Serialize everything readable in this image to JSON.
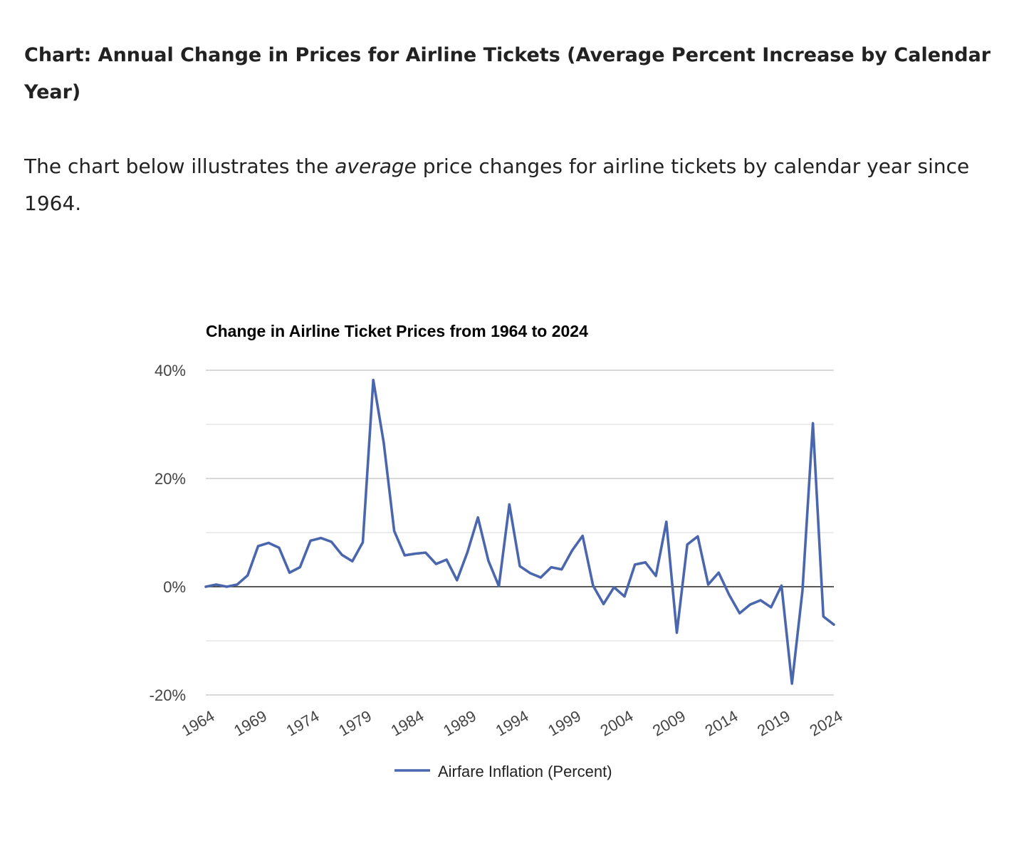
{
  "article": {
    "heading": "Chart: Annual Change in Prices for Airline Tickets (Average Percent Increase by Calendar Year)",
    "intro_before": "The chart below illustrates the ",
    "intro_emphasis": "average",
    "intro_after": " price changes for airline tickets by calendar year since 1964."
  },
  "colors": {
    "series_line": "#4a66ad",
    "zero_line": "#222222",
    "gridline": "#cccccc",
    "minor_gridline": "#e6e6e6"
  },
  "chart_data": {
    "type": "line",
    "title": "Change in Airline Ticket Prices from 1964 to 2024",
    "xlabel": "",
    "ylabel": "",
    "xlim": [
      1964,
      2024
    ],
    "ylim": [
      -20,
      40
    ],
    "y_ticks": [
      40,
      20,
      0,
      -20
    ],
    "y_tick_labels": [
      "40%",
      "20%",
      "0%",
      "-20%"
    ],
    "x_ticks": [
      1964,
      1969,
      1974,
      1979,
      1984,
      1989,
      1994,
      1999,
      2004,
      2009,
      2014,
      2019,
      2024
    ],
    "x_tick_labels": [
      "1964",
      "1969",
      "1974",
      "1979",
      "1984",
      "1989",
      "1994",
      "1999",
      "2004",
      "2009",
      "2014",
      "2019",
      "2024"
    ],
    "grid": true,
    "legend_position": "bottom",
    "x": [
      1964,
      1965,
      1966,
      1967,
      1968,
      1969,
      1970,
      1971,
      1972,
      1973,
      1974,
      1975,
      1976,
      1977,
      1978,
      1979,
      1980,
      1981,
      1982,
      1983,
      1984,
      1985,
      1986,
      1987,
      1988,
      1989,
      1990,
      1991,
      1992,
      1993,
      1994,
      1995,
      1996,
      1997,
      1998,
      1999,
      2000,
      2001,
      2002,
      2003,
      2004,
      2005,
      2006,
      2007,
      2008,
      2009,
      2010,
      2011,
      2012,
      2013,
      2014,
      2015,
      2016,
      2017,
      2018,
      2019,
      2020,
      2021,
      2022,
      2023,
      2024
    ],
    "series": [
      {
        "name": "Airfare Inflation (Percent)",
        "values": [
          0.0,
          0.4,
          0.0,
          0.4,
          2.1,
          7.5,
          8.1,
          7.2,
          2.6,
          3.6,
          8.5,
          9.0,
          8.3,
          5.9,
          4.7,
          8.2,
          38.2,
          26.6,
          10.3,
          5.8,
          6.1,
          6.3,
          4.2,
          5.0,
          1.2,
          6.4,
          12.8,
          4.8,
          0.1,
          15.2,
          3.8,
          2.5,
          1.7,
          3.6,
          3.2,
          6.7,
          9.4,
          0.2,
          -3.2,
          -0.1,
          -1.8,
          4.1,
          4.5,
          2.0,
          12.0,
          -8.5,
          7.8,
          9.3,
          0.4,
          2.6,
          -1.5,
          -4.9,
          -3.3,
          -2.5,
          -3.8,
          0.2,
          -17.9,
          -0.8,
          30.2,
          -5.5,
          -7.0
        ]
      }
    ]
  }
}
